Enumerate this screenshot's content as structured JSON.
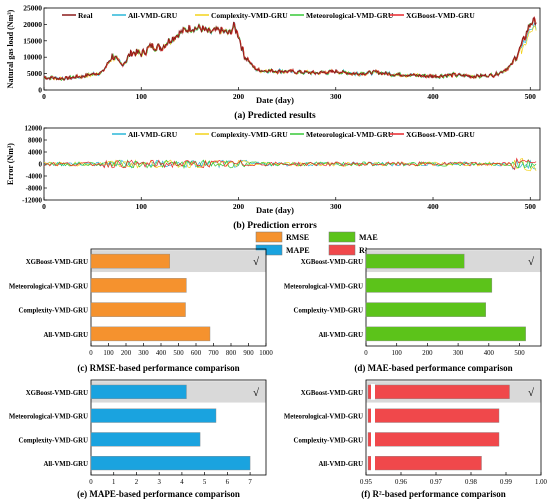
{
  "chart_data": [
    {
      "type": "line",
      "caption": "(a) Predicted results",
      "xlabel": "Date (day)",
      "ylabel": "Natural gas load (Nm³)",
      "xlim": [
        0,
        510
      ],
      "ylim": [
        0,
        25000
      ],
      "xticks": [
        0,
        100,
        200,
        300,
        400,
        500
      ],
      "yticks": [
        0,
        5000,
        10000,
        15000,
        20000,
        25000
      ],
      "ytick_labels": [
        "0",
        "5000",
        "10000",
        "15000",
        "20000",
        "25000"
      ],
      "legend_position": "top",
      "series": [
        {
          "name": "Real",
          "color": "#8b1a1a"
        },
        {
          "name": "All-VMD-GRU",
          "color": "#2ab7d8"
        },
        {
          "name": "Complexity-VMD-GRU",
          "color": "#f2d31b"
        },
        {
          "name": "Meteorological-VMD-GRU",
          "color": "#37c837"
        },
        {
          "name": "XGBoost-VMD-GRU",
          "color": "#e8262a"
        }
      ],
      "x": [
        0,
        20,
        40,
        60,
        70,
        80,
        90,
        100,
        110,
        120,
        130,
        140,
        150,
        160,
        170,
        180,
        190,
        195,
        200,
        205,
        210,
        215,
        220,
        240,
        260,
        280,
        300,
        320,
        340,
        360,
        380,
        400,
        420,
        440,
        460,
        470,
        480,
        490,
        500,
        505
      ],
      "real": [
        3800,
        3500,
        4200,
        5500,
        10500,
        7500,
        11500,
        11000,
        13500,
        13000,
        15500,
        17500,
        19000,
        18800,
        17500,
        18200,
        17200,
        19500,
        16500,
        11000,
        9000,
        7000,
        6000,
        5800,
        5500,
        5200,
        5600,
        5000,
        5400,
        4800,
        4500,
        4200,
        4600,
        4200,
        4500,
        5500,
        7500,
        13000,
        20500,
        21000
      ]
    },
    {
      "type": "line",
      "caption": "(b) Prediction errors",
      "xlabel": "Date (day)",
      "ylabel": "Error (Nm³)",
      "xlim": [
        0,
        510
      ],
      "ylim": [
        -12000,
        12000
      ],
      "xticks": [
        0,
        100,
        200,
        300,
        400,
        500
      ],
      "yticks": [
        -12000,
        -8000,
        -4000,
        0,
        4000,
        8000,
        12000
      ],
      "ytick_labels": [
        "-12000",
        "-8000",
        "-4000",
        "0",
        "4000",
        "8000",
        "12000"
      ],
      "legend_position": "top",
      "series": [
        {
          "name": "All-VMD-GRU",
          "color": "#2ab7d8"
        },
        {
          "name": "Complexity-VMD-GRU",
          "color": "#f2d31b"
        },
        {
          "name": "Meteorological-VMD-GRU",
          "color": "#37c837"
        },
        {
          "name": "XGBoost-VMD-GRU",
          "color": "#e8262a"
        }
      ]
    },
    {
      "type": "bar",
      "orientation": "horizontal",
      "caption": "(c) RMSE-based performance comparison",
      "legend": "RMSE",
      "color": "#f5922e",
      "categories": [
        "XGBoost-VMD-GRU",
        "Meteorological-VMD-GRU",
        "Complexity-VMD-GRU",
        "All-VMD-GRU"
      ],
      "values": [
        450,
        545,
        540,
        680
      ],
      "xlim": [
        0,
        1000
      ],
      "xticks": [
        0,
        100,
        200,
        300,
        400,
        500,
        600,
        700,
        800,
        900,
        1000
      ],
      "best_mark": "√"
    },
    {
      "type": "bar",
      "orientation": "horizontal",
      "caption": "(d) MAE-based performance comparison",
      "legend": "MAE",
      "color": "#5cc31a",
      "categories": [
        "XGBoost-VMD-GRU",
        "Meteorological-VMD-GRU",
        "Complexity-VMD-GRU",
        "All-VMD-GRU"
      ],
      "values": [
        320,
        410,
        390,
        520
      ],
      "xlim": [
        0,
        570
      ],
      "xticks": [
        0,
        100,
        200,
        300,
        400,
        500
      ],
      "best_mark": "√"
    },
    {
      "type": "bar",
      "orientation": "horizontal",
      "caption": "(e) MAPE-based performance comparison",
      "legend": "MAPE",
      "color": "#1aa3df",
      "categories": [
        "XGBoost-VMD-GRU",
        "Meteorological-VMD-GRU",
        "Complexity-VMD-GRU",
        "All-VMD-GRU"
      ],
      "values": [
        4.2,
        5.5,
        4.8,
        7.0
      ],
      "xlim": [
        0,
        7.7
      ],
      "xticks": [
        0,
        1,
        2,
        3,
        4,
        5,
        6,
        7
      ],
      "best_mark": "√"
    },
    {
      "type": "bar",
      "orientation": "horizontal",
      "caption": "(f) R²-based performance comparison",
      "legend": "R²",
      "color": "#f0484b",
      "categories": [
        "XGBoost-VMD-GRU",
        "Meteorological-VMD-GRU",
        "Complexity-VMD-GRU",
        "All-VMD-GRU"
      ],
      "values": [
        0.991,
        0.988,
        0.988,
        0.983
      ],
      "xlim": [
        0.95,
        1.0
      ],
      "xticks": [
        0.95,
        0.96,
        0.97,
        0.98,
        0.99,
        1.0
      ],
      "xtick_labels": [
        "0.95",
        "0.96",
        "0.97",
        "0.98",
        "0.99",
        "1.00"
      ],
      "axis_break": true,
      "best_mark": "√"
    }
  ]
}
